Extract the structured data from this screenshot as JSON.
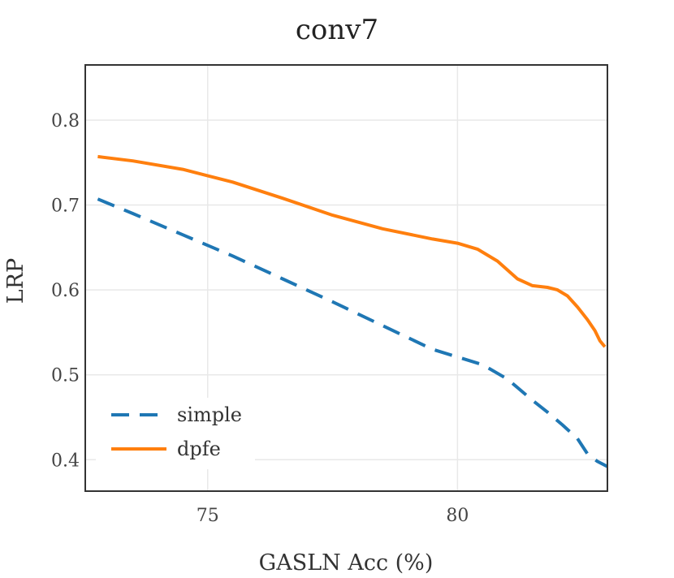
{
  "chart_data": {
    "type": "line",
    "title": "conv7",
    "xlabel": "GASLN Acc (%)",
    "ylabel": "LRP",
    "xlim": [
      72.55,
      83.0
    ],
    "ylim": [
      0.363,
      0.865
    ],
    "xticks": [
      75,
      80
    ],
    "xtick_labels": [
      "75",
      "80"
    ],
    "yticks": [
      0.4,
      0.5,
      0.6,
      0.7,
      0.8
    ],
    "ytick_labels": [
      "0.4",
      "0.5",
      "0.6",
      "0.7",
      "0.8"
    ],
    "grid": true,
    "legend_position": "lower-left",
    "series": [
      {
        "name": "simple",
        "color": "#1f77b4",
        "style": "dashed",
        "x": [
          72.8,
          73.5,
          74.5,
          75.5,
          76.5,
          77.5,
          78.5,
          79.5,
          80.5,
          81.0,
          81.5,
          81.8,
          82.1,
          82.4,
          82.6,
          82.8,
          83.0
        ],
        "y": [
          0.707,
          0.69,
          0.665,
          0.64,
          0.613,
          0.586,
          0.558,
          0.53,
          0.512,
          0.495,
          0.47,
          0.456,
          0.441,
          0.425,
          0.407,
          0.398,
          0.392
        ]
      },
      {
        "name": "dpfe",
        "color": "#ff7f0e",
        "style": "solid",
        "x": [
          72.8,
          73.5,
          74.5,
          75.5,
          76.5,
          77.5,
          78.5,
          79.5,
          80.0,
          80.4,
          80.8,
          81.2,
          81.5,
          81.8,
          82.0,
          82.2,
          82.4,
          82.6,
          82.75,
          82.85,
          82.95
        ],
        "y": [
          0.757,
          0.752,
          0.742,
          0.727,
          0.708,
          0.688,
          0.672,
          0.66,
          0.655,
          0.648,
          0.634,
          0.613,
          0.605,
          0.603,
          0.6,
          0.593,
          0.58,
          0.565,
          0.552,
          0.54,
          0.533
        ]
      }
    ]
  }
}
